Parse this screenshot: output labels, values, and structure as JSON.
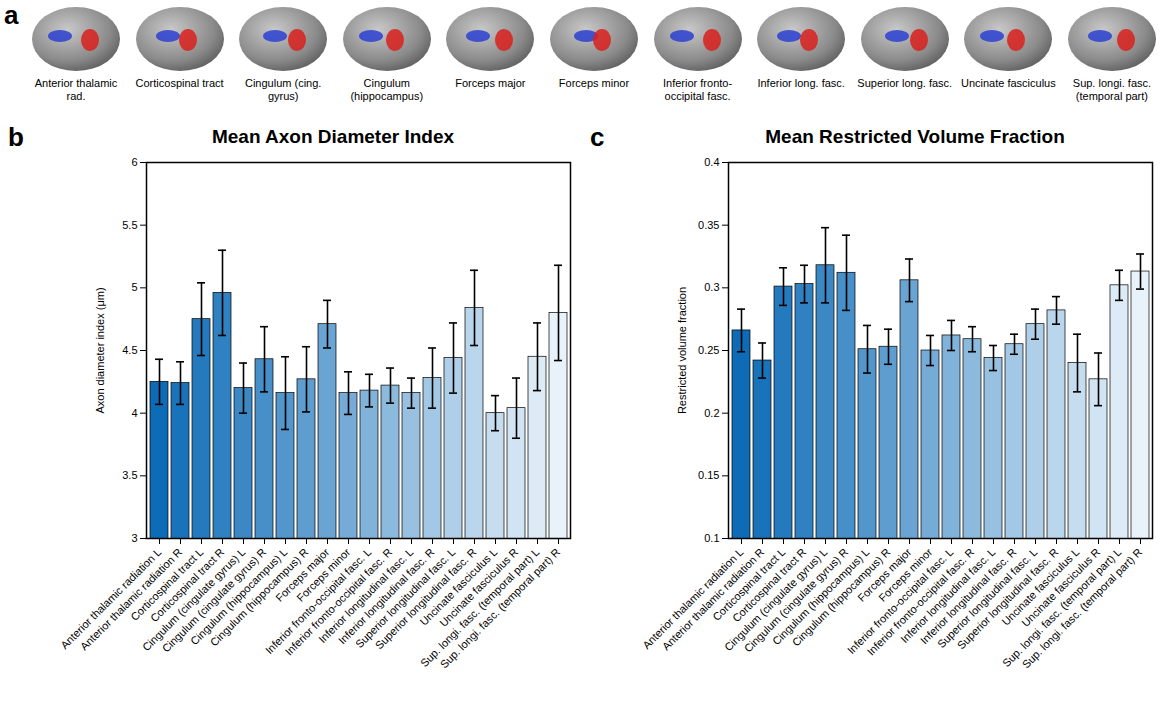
{
  "panel_a": {
    "label": "a",
    "tracts": [
      "Anterior thalamic rad.",
      "Corticospinal tract",
      "Cingulum (cing. gyrus)",
      "Cingulum (hippocampus)",
      "Forceps major",
      "Forceps minor",
      "Inferior fronto-occipital fasc.",
      "Inferior long. fasc.",
      "Superior long. fasc.",
      "Uncinate fasciculus",
      "Sup. longi. fasc. (temporal part)"
    ]
  },
  "chart_data": [
    {
      "type": "bar",
      "panel": "b",
      "title": "Mean Axon Diameter Index",
      "ylabel": "Axon diameter index (μm)",
      "categories": [
        "Anterior thalamic radiation L",
        "Anterior thalamic radiation R",
        "Corticospinal tract L",
        "Corticospinal tract R",
        "Cingulum (cingulate gyrus) L",
        "Cingulum (cingulate gyrus) R",
        "Cingulum (hippocampus) L",
        "Cingulum (hippocampus) R",
        "Forceps major",
        "Forceps minor",
        "Inferior fronto-occipital fasc. L",
        "Inferior fronto-occipital fasc. R",
        "Inferior longitudinal fasc. L",
        "Inferior longitudinal fasc. R",
        "Superior longitudinal fasc. L",
        "Superior longitudinal fasc. R",
        "Uncinate fasciculus L",
        "Uncinate fasciculus R",
        "Sup. longi. fasc. (temporal part) L",
        "Sup. longi. fasc. (temporal part) R"
      ],
      "values": [
        4.25,
        4.24,
        4.75,
        4.96,
        4.2,
        4.43,
        4.16,
        4.27,
        4.71,
        4.16,
        4.18,
        4.22,
        4.16,
        4.28,
        4.44,
        4.84,
        4.0,
        4.04,
        4.45,
        4.8
      ],
      "errors": [
        0.18,
        0.17,
        0.29,
        0.34,
        0.2,
        0.26,
        0.29,
        0.26,
        0.19,
        0.17,
        0.13,
        0.14,
        0.12,
        0.24,
        0.28,
        0.3,
        0.14,
        0.24,
        0.27,
        0.38
      ],
      "colors": [
        "#0e6cb6",
        "#1973ba",
        "#257abd",
        "#3081c1",
        "#3c88c4",
        "#478fc8",
        "#5396cb",
        "#5e9dcf",
        "#6aa4d3",
        "#75abd6",
        "#81b2da",
        "#8cbadd",
        "#98c1e1",
        "#a3c8e5",
        "#afcfe8",
        "#bad6ec",
        "#c6ddef",
        "#d1e4f3",
        "#ddebf6",
        "#e8f2fa"
      ],
      "ylim": [
        3,
        6
      ],
      "yticks": [
        3,
        3.5,
        4,
        4.5,
        5,
        5.5,
        6
      ],
      "grid": false
    },
    {
      "type": "bar",
      "panel": "c",
      "title": "Mean Restricted Volume Fraction",
      "ylabel": "Restricted volume fraction",
      "categories": [
        "Anterior thalamic radiation L",
        "Anterior thalamic radiation R",
        "Corticospinal tract L",
        "Corticospinal tract R",
        "Cingulum (cingulate gyrus) L",
        "Cingulum (cingulate gyrus) R",
        "Cingulum (hippocampus) L",
        "Cingulum (hippocampus) R",
        "Forceps major",
        "Forceps minor",
        "Inferior fronto-occipital fasc. L",
        "Inferior fronto-occipital fasc. R",
        "Inferior longitudinal fasc. L",
        "Inferior longitudinal fasc. R",
        "Superior longitudinal fasc. L",
        "Superior longitudinal fasc. R",
        "Uncinate fasciculus L",
        "Uncinate fasciculus R",
        "Sup. longi. fasc. (temporal part) L",
        "Sup. longi. fasc. (temporal part) R"
      ],
      "values": [
        0.266,
        0.242,
        0.301,
        0.303,
        0.318,
        0.312,
        0.251,
        0.253,
        0.306,
        0.25,
        0.262,
        0.259,
        0.244,
        0.255,
        0.271,
        0.282,
        0.24,
        0.227,
        0.302,
        0.313
      ],
      "errors": [
        0.017,
        0.014,
        0.015,
        0.015,
        0.03,
        0.03,
        0.019,
        0.014,
        0.017,
        0.012,
        0.012,
        0.01,
        0.01,
        0.008,
        0.012,
        0.011,
        0.023,
        0.021,
        0.012,
        0.014
      ],
      "colors": [
        "#0e6cb6",
        "#1973ba",
        "#257abd",
        "#3081c1",
        "#3c88c4",
        "#478fc8",
        "#5396cb",
        "#5e9dcf",
        "#6aa4d3",
        "#75abd6",
        "#81b2da",
        "#8cbadd",
        "#98c1e1",
        "#a3c8e5",
        "#afcfe8",
        "#bad6ec",
        "#c6ddef",
        "#d1e4f3",
        "#ddebf6",
        "#e8f2fa"
      ],
      "ylim": [
        0.1,
        0.4
      ],
      "yticks": [
        0.1,
        0.15,
        0.2,
        0.25,
        0.3,
        0.35,
        0.4
      ],
      "grid": false
    }
  ]
}
